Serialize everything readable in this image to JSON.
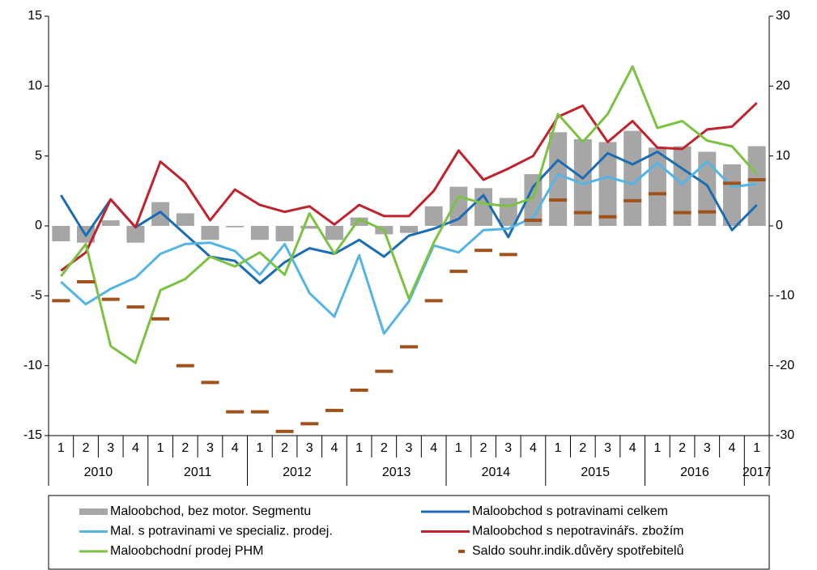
{
  "chart_data": {
    "type": "combo",
    "categories": [
      "1",
      "2",
      "3",
      "4",
      "1",
      "2",
      "3",
      "4",
      "1",
      "2",
      "3",
      "4",
      "1",
      "2",
      "3",
      "4",
      "1",
      "2",
      "3",
      "4",
      "1",
      "2",
      "3",
      "4",
      "1",
      "2",
      "3",
      "4",
      "1"
    ],
    "category_groups": [
      "2010",
      "2011",
      "2012",
      "2013",
      "2014",
      "2015",
      "2016",
      "2017"
    ],
    "ylim": [
      -15,
      15
    ],
    "yticks": [
      -15,
      -10,
      -5,
      0,
      5,
      10,
      15
    ],
    "y2lim": [
      -30,
      30
    ],
    "y2ticks": [
      -30,
      -20,
      -10,
      0,
      10,
      20,
      30
    ],
    "grid": false,
    "legend": "bottom",
    "series": [
      {
        "name": "Maloobchod, bez motor. Segmentu",
        "type": "bar",
        "color": "#a6a6a6",
        "values": [
          -1.1,
          -1.2,
          0.4,
          -1.2,
          1.7,
          0.9,
          -1.0,
          -0.1,
          -1.0,
          -1.1,
          -0.2,
          -1.0,
          0.6,
          -0.6,
          -0.5,
          1.4,
          2.8,
          2.7,
          2.0,
          3.7,
          6.7,
          6.2,
          6.0,
          6.8,
          5.6,
          5.7,
          5.3,
          4.4,
          5.7
        ]
      },
      {
        "name": "Maloobchod s potravinami celkem",
        "type": "line",
        "color": "#1a6db5",
        "values": [
          2.2,
          -0.7,
          1.9,
          -0.1,
          1.0,
          -0.6,
          -2.2,
          -2.5,
          -4.1,
          -2.6,
          -1.6,
          -2.0,
          -1.0,
          -2.2,
          -0.7,
          -0.2,
          0.5,
          2.2,
          -0.8,
          2.8,
          4.7,
          3.4,
          5.2,
          4.4,
          5.3,
          4.1,
          2.9,
          -0.3,
          1.5
        ]
      },
      {
        "name": "Mal. s potravinami ve specializ. prodej.",
        "type": "line",
        "color": "#55b4e6",
        "values": [
          -4.0,
          -5.6,
          -4.5,
          -3.7,
          -2.0,
          -1.3,
          -1.2,
          -1.8,
          -3.5,
          -1.3,
          -4.8,
          -6.5,
          -2.1,
          -7.7,
          -5.4,
          -1.4,
          -1.9,
          -0.3,
          -0.2,
          0.6,
          3.7,
          3.0,
          3.5,
          3.0,
          4.5,
          3.0,
          4.6,
          2.8,
          3.0
        ]
      },
      {
        "name": "Maloobchod s nepotravinářs. zbožím",
        "type": "line",
        "color": "#c0232c",
        "values": [
          -3.2,
          -1.9,
          1.9,
          -0.1,
          4.6,
          3.1,
          0.4,
          2.6,
          1.5,
          1.0,
          1.4,
          0.1,
          1.5,
          0.7,
          0.7,
          2.5,
          5.4,
          3.3,
          4.1,
          5.0,
          7.8,
          8.6,
          6.0,
          7.5,
          5.6,
          5.5,
          6.9,
          7.1,
          8.8
        ]
      },
      {
        "name": "Maloobchodní prodej PHM",
        "type": "line",
        "color": "#7cc242",
        "values": [
          -3.6,
          -1.3,
          -8.6,
          -9.8,
          -4.6,
          -3.8,
          -2.2,
          -2.9,
          -1.9,
          -3.5,
          0.9,
          -2.0,
          0.5,
          -0.3,
          -5.2,
          -1.2,
          2.1,
          1.6,
          1.4,
          2.0,
          8.0,
          6.0,
          8.0,
          11.4,
          7.0,
          7.5,
          6.1,
          5.7,
          3.7
        ]
      },
      {
        "name": "Saldo souhr.indik.důvěry spotřebitelů",
        "type": "dash",
        "axis": "y2",
        "color": "#a0521a",
        "values": [
          -10.7,
          -8.0,
          -10.5,
          -11.6,
          -13.3,
          -20.0,
          -22.4,
          -26.6,
          -26.6,
          -29.4,
          -28.3,
          -26.4,
          -23.5,
          -20.8,
          -17.3,
          -10.7,
          -6.5,
          -3.5,
          -4.1,
          0.8,
          3.7,
          1.9,
          1.3,
          3.6,
          4.6,
          1.9,
          2.0,
          6.1,
          6.6
        ]
      }
    ]
  }
}
